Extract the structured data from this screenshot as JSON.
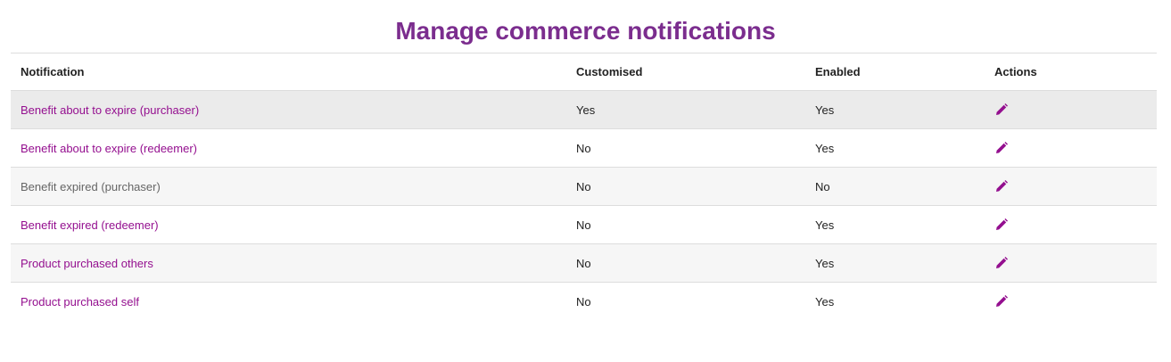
{
  "page": {
    "title": "Manage commerce notifications"
  },
  "colors": {
    "title": "#7b2d8e",
    "link": "#940f8f",
    "muted_link": "#666666",
    "edit_icon": "#940f8f"
  },
  "table": {
    "headers": [
      "Notification",
      "Customised",
      "Enabled",
      "Actions"
    ],
    "rows": [
      {
        "notification": "Benefit about to expire (purchaser)",
        "customised": "Yes",
        "enabled": "Yes",
        "action_icon": "pencil-edit-icon",
        "state": "hovered"
      },
      {
        "notification": "Benefit about to expire (redeemer)",
        "customised": "No",
        "enabled": "Yes",
        "action_icon": "pencil-edit-icon"
      },
      {
        "notification": "Benefit expired (purchaser)",
        "customised": "No",
        "enabled": "No",
        "action_icon": "pencil-edit-icon",
        "state": "disabled"
      },
      {
        "notification": "Benefit expired (redeemer)",
        "customised": "No",
        "enabled": "Yes",
        "action_icon": "pencil-edit-icon"
      },
      {
        "notification": "Product purchased others",
        "customised": "No",
        "enabled": "Yes",
        "action_icon": "pencil-edit-icon"
      },
      {
        "notification": "Product purchased self",
        "customised": "No",
        "enabled": "Yes",
        "action_icon": "pencil-edit-icon"
      }
    ]
  }
}
